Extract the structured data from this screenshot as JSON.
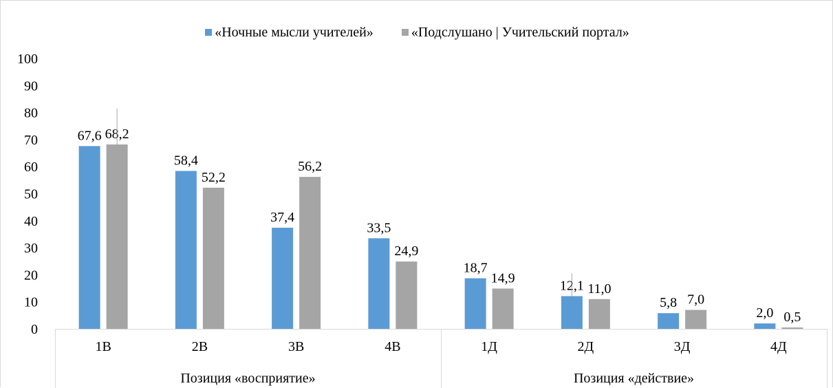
{
  "chart_data": {
    "type": "bar",
    "categories": [
      "1В",
      "2В",
      "3В",
      "4В",
      "1Д",
      "2Д",
      "3Д",
      "4Д"
    ],
    "groups": [
      {
        "label": "Позиция «восприятие»",
        "categories": [
          "1В",
          "2В",
          "3В",
          "4В"
        ]
      },
      {
        "label": "Позиция «действие»",
        "categories": [
          "1Д",
          "2Д",
          "3Д",
          "4Д"
        ]
      }
    ],
    "series": [
      {
        "name": "«Ночные мысли учителей»",
        "color": "#5b9bd5",
        "values": [
          67.6,
          58.4,
          37.4,
          33.5,
          18.7,
          12.1,
          5.8,
          2.0
        ],
        "labels": [
          "67,6",
          "58,4",
          "37,4",
          "33,5",
          "18,7",
          "12,1",
          "5,8",
          "2,0"
        ]
      },
      {
        "name": "«Подслушано | Учительский портал»",
        "color": "#a5a5a5",
        "values": [
          68.2,
          52.2,
          56.2,
          24.9,
          14.9,
          11.0,
          7.0,
          0.5
        ],
        "labels": [
          "68,2",
          "52,2",
          "56,2",
          "24,9",
          "14,9",
          "11,0",
          "7,0",
          "0,5"
        ]
      }
    ],
    "ylim": [
      0,
      100
    ],
    "yticks": [
      "0",
      "10",
      "20",
      "30",
      "40",
      "50",
      "60",
      "70",
      "80",
      "90",
      "100"
    ],
    "title": "",
    "xlabel": "",
    "ylabel": "",
    "legend_position": "top",
    "grid": false
  }
}
